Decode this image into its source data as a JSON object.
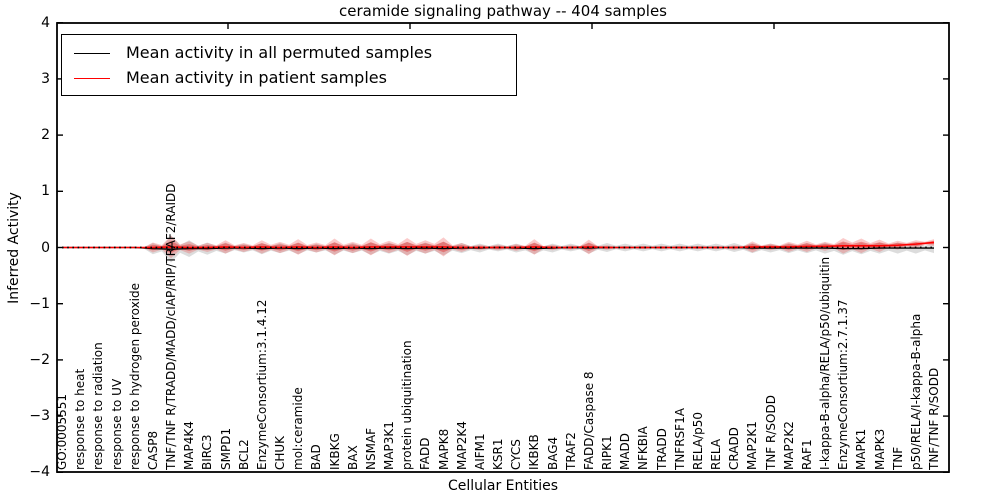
{
  "chart_data": {
    "type": "line",
    "title": "ceramide signaling pathway -- 404 samples",
    "xlabel": "Cellular Entities",
    "ylabel": "Inferred Activity",
    "ylim": [
      -4,
      4
    ],
    "yticks": [
      "4",
      "3",
      "2",
      "1",
      "0",
      "−1",
      "−2",
      "−3",
      "−4"
    ],
    "ytick_values": [
      4,
      3,
      2,
      1,
      0,
      -1,
      -2,
      -3,
      -4
    ],
    "grid": false,
    "legend_position": "upper left",
    "legend": [
      {
        "label": "Mean activity in all permuted samples",
        "color": "#000000"
      },
      {
        "label": "Mean activity in patient samples",
        "color": "#ff0000"
      }
    ],
    "colors": {
      "permuted_line": "#000000",
      "patient_line": "#ff0000",
      "zero_dotted_line": "#000000",
      "patient_band_inner": "rgba(225,40,40,0.42)",
      "patient_band_outer": "rgba(240,70,70,0.28)",
      "permuted_band": "rgba(130,130,130,0.28)",
      "frame": "#000000"
    },
    "categories": [
      "GO:0005551",
      "response to heat",
      "response to radiation",
      "response to UV",
      "response to hydrogen peroxide",
      "CASP8",
      "TNF/TNF R/TRADD/MADD/cIAP/RIP/TRAF2/RAIDD",
      "MAP4K4",
      "BIRC3",
      "SMPD1",
      "BCL2",
      "EnzymeConsortium:3.1.4.12",
      "CHUK",
      "mol:ceramide",
      "BAD",
      "IKBKG",
      "BAX",
      "NSMAF",
      "MAP3K1",
      "protein ubiquitination",
      "FADD",
      "MAPK8",
      "MAP2K4",
      "AIFM1",
      "KSR1",
      "CYCS",
      "IKBKB",
      "BAG4",
      "TRAF2",
      "FADD/Caspase 8",
      "RIPK1",
      "MADD",
      "NFKBIA",
      "TRADD",
      "TNFRSF1A",
      "RELA/p50",
      "RELA",
      "CRADD",
      "MAP2K1",
      "TNF R/SODD",
      "MAP2K2",
      "RAF1",
      "I-kappa-B-alpha/RELA/p50/ubiquitin",
      "EnzymeConsortium:2.7.1.37",
      "MAPK1",
      "MAPK3",
      "TNF",
      "p50/RELA/I-kappa-B-alpha",
      "TNF/TNF R/SODD"
    ],
    "series": [
      {
        "name": "Mean activity in all permuted samples",
        "values": [
          0,
          0,
          0,
          0,
          0,
          -0.02,
          -0.03,
          -0.02,
          -0.02,
          -0.01,
          -0.01,
          -0.02,
          -0.01,
          -0.02,
          -0.01,
          -0.02,
          -0.01,
          -0.02,
          -0.01,
          -0.02,
          -0.01,
          -0.02,
          -0.01,
          -0.01,
          0,
          -0.01,
          -0.02,
          -0.01,
          0,
          -0.01,
          0,
          0,
          0,
          0,
          0,
          0,
          0,
          0,
          -0.01,
          -0.01,
          -0.01,
          -0.01,
          -0.01,
          -0.02,
          -0.02,
          -0.01,
          -0.01,
          -0.01,
          -0.01
        ]
      },
      {
        "name": "Mean activity in patient samples",
        "values": [
          0,
          0,
          0,
          0,
          0,
          0,
          0.01,
          0,
          0,
          0.01,
          0,
          0.01,
          0,
          0.01,
          0,
          0.01,
          0,
          0.01,
          0.01,
          0.01,
          0.01,
          0.01,
          0,
          0,
          0,
          0,
          0.01,
          0,
          0,
          0.01,
          0,
          0,
          0,
          0,
          0,
          0,
          0,
          0,
          0.01,
          0.01,
          0.01,
          0.02,
          0.02,
          0.03,
          0.03,
          0.03,
          0.04,
          0.06,
          0.09
        ]
      }
    ],
    "patient_band_half_widths": [
      0.005,
      0.005,
      0.005,
      0.005,
      0.008,
      0.09,
      0.2,
      0.11,
      0.08,
      0.12,
      0.08,
      0.12,
      0.1,
      0.14,
      0.09,
      0.15,
      0.1,
      0.15,
      0.11,
      0.16,
      0.12,
      0.17,
      0.08,
      0.05,
      0.05,
      0.06,
      0.14,
      0.05,
      0.04,
      0.13,
      0.04,
      0.03,
      0.03,
      0.03,
      0.03,
      0.03,
      0.03,
      0.04,
      0.1,
      0.06,
      0.09,
      0.1,
      0.08,
      0.14,
      0.13,
      0.11,
      0.08,
      0.07,
      0.06
    ],
    "permuted_band_half_widths": [
      0.01,
      0.01,
      0.01,
      0.01,
      0.015,
      0.1,
      0.24,
      0.15,
      0.11,
      0.1,
      0.08,
      0.1,
      0.09,
      0.1,
      0.08,
      0.11,
      0.09,
      0.11,
      0.1,
      0.12,
      0.1,
      0.12,
      0.09,
      0.08,
      0.07,
      0.08,
      0.1,
      0.08,
      0.07,
      0.1,
      0.08,
      0.07,
      0.07,
      0.07,
      0.07,
      0.07,
      0.07,
      0.08,
      0.09,
      0.08,
      0.09,
      0.09,
      0.1,
      0.11,
      0.1,
      0.1,
      0.1,
      0.1,
      0.09
    ],
    "zero_reference_line": 0
  }
}
